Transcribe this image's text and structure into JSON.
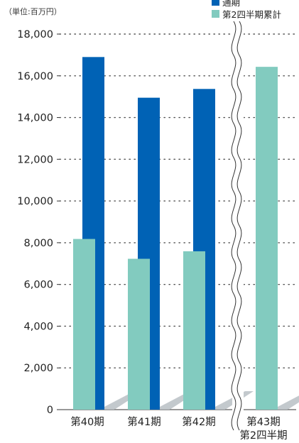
{
  "colors": {
    "full_year": "#0062b5",
    "h2": "#82cbbf",
    "grid": "#555555",
    "axis": "#333333",
    "shadow": "#b9bfc4"
  },
  "chart_data": {
    "type": "bar",
    "unit_label": "（単位:百万円）",
    "categories": [
      "第40期",
      "第41期",
      "第42期",
      "第43期\n第2四半期"
    ],
    "series": [
      {
        "name": "通期",
        "color": "#0062b5",
        "values": [
          16900,
          14950,
          15370,
          null
        ]
      },
      {
        "name": "第2四半期累計",
        "color": "#82cbbf",
        "values": [
          8180,
          7230,
          7590,
          16430
        ]
      }
    ],
    "yticks": [
      0,
      2000,
      4000,
      6000,
      8000,
      10000,
      12000,
      14000,
      16000,
      18000
    ],
    "ytick_labels": [
      "0",
      "2,000",
      "4,000",
      "6,000",
      "8,000",
      "10,000",
      "12,000",
      "14,000",
      "16,000",
      "18,000"
    ],
    "ylim": [
      0,
      18000
    ],
    "grid": true,
    "axis_break": "between 第42期 and 第43期",
    "legend": "top-right"
  }
}
